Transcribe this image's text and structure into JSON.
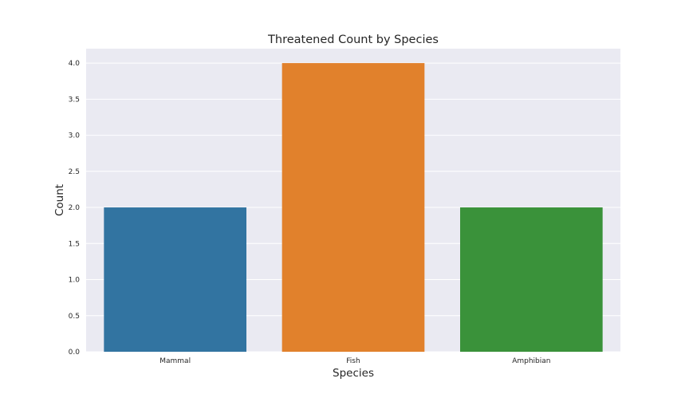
{
  "chart_data": {
    "type": "bar",
    "title": "Threatened Count by Species",
    "xlabel": "Species",
    "ylabel": "Count",
    "categories": [
      "Mammal",
      "Fish",
      "Amphibian"
    ],
    "values": [
      2,
      4,
      2
    ],
    "colors": [
      "#3274a1",
      "#e1812c",
      "#3a923a"
    ],
    "ylim": [
      0,
      4.2
    ],
    "yticks": [
      0,
      0.5,
      1,
      1.5,
      2,
      2.5,
      3,
      3.5,
      4
    ],
    "ytick_labels": [
      "0.0",
      "0.5",
      "1.0",
      "1.5",
      "2.0",
      "2.5",
      "3.0",
      "3.5",
      "4.0"
    ],
    "grid": true,
    "background": "#eaeaf2",
    "grid_color": "#ffffff"
  }
}
